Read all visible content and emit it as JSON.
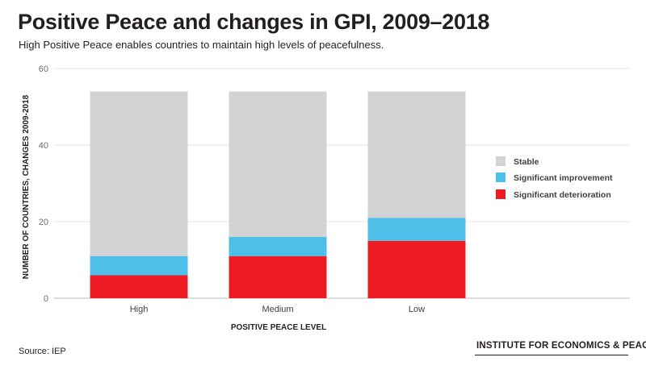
{
  "header": {
    "title": "Positive Peace and changes in GPI, 2009–2018",
    "subtitle": "High Positive Peace enables countries to maintain high levels of peacefulness."
  },
  "footer": {
    "source": "Source: IEP",
    "organization": "INSTITUTE FOR ECONOMICS & PEACE"
  },
  "chart_data": {
    "type": "bar",
    "stacked": true,
    "categories": [
      "High",
      "Medium",
      "Low"
    ],
    "series": [
      {
        "name": "Significant deterioration",
        "values": [
          6,
          11,
          15
        ],
        "color": "#ed1c24"
      },
      {
        "name": "Significant improvement",
        "values": [
          5,
          5,
          6
        ],
        "color": "#4dbfe8"
      },
      {
        "name": "Stable",
        "values": [
          43,
          38,
          33
        ],
        "color": "#d1d3d4"
      }
    ],
    "legend_order": [
      "Stable",
      "Significant improvement",
      "Significant deterioration"
    ],
    "xlabel": "POSITIVE PEACE LEVEL",
    "ylabel": "NUMBER OF COUNTRIES, CHANGES 2009-2018",
    "ylim": [
      0,
      60
    ],
    "yticks": [
      0,
      20,
      40,
      60
    ],
    "grid": true,
    "legend_position": "right"
  }
}
